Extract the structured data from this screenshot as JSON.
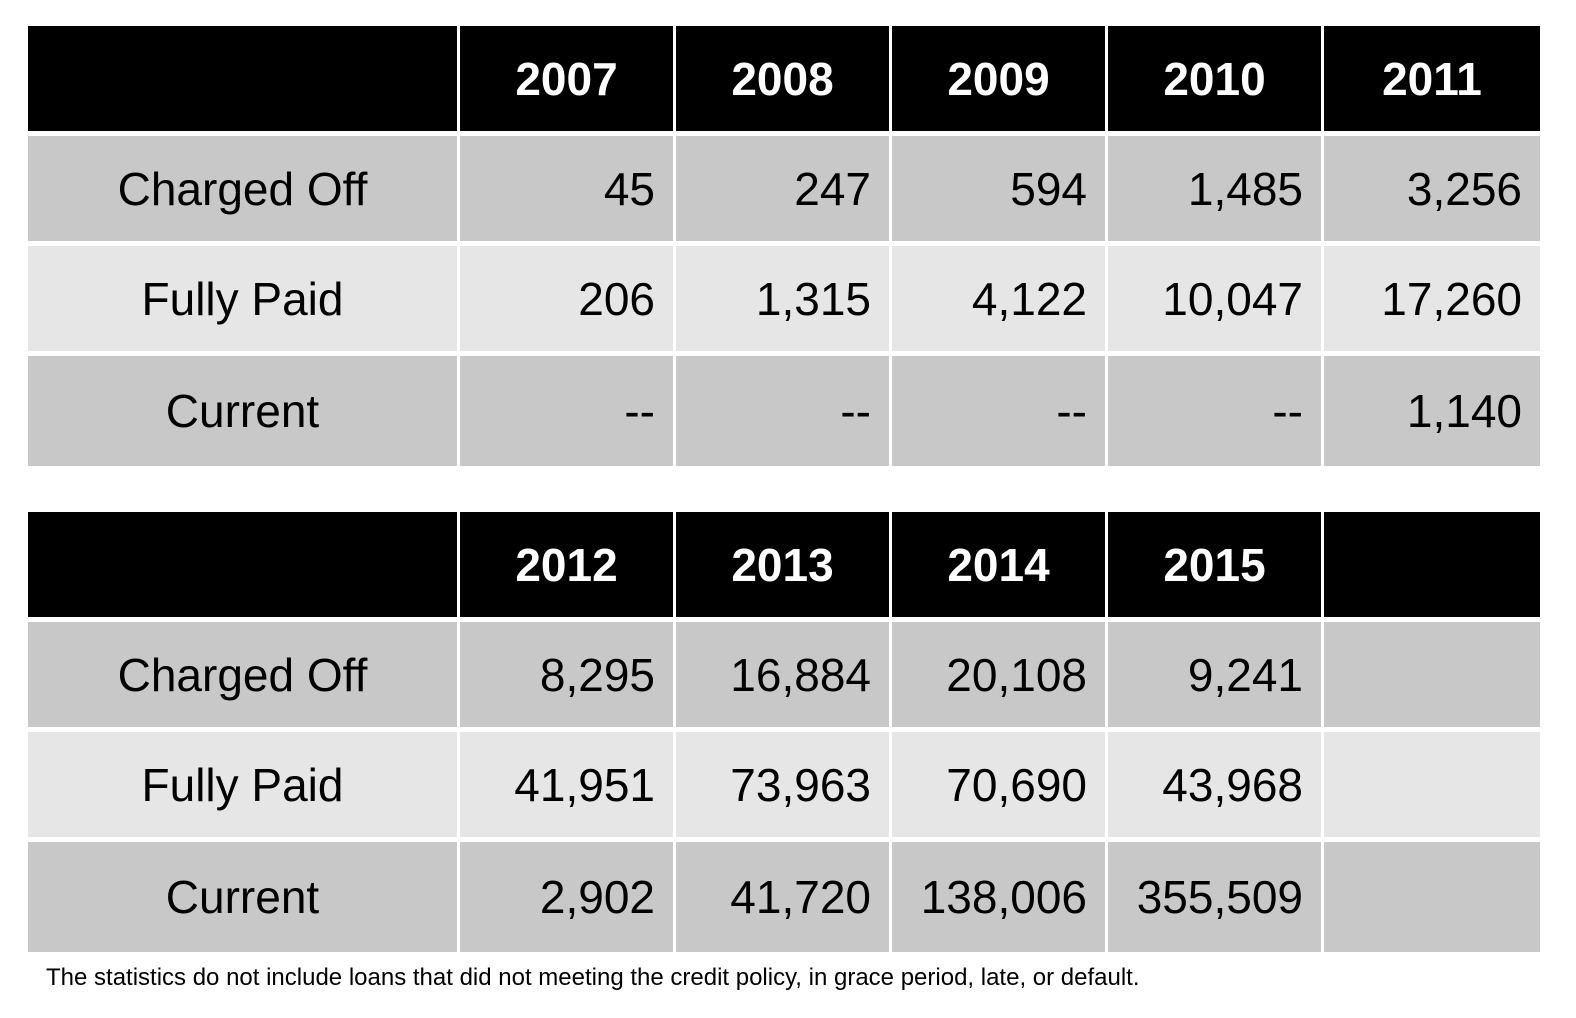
{
  "chart_data": [
    {
      "type": "table",
      "columns": [
        "",
        "2007",
        "2008",
        "2009",
        "2010",
        "2011"
      ],
      "rows": [
        [
          "Charged Off",
          "45",
          "247",
          "594",
          "1,485",
          "3,256"
        ],
        [
          "Fully Paid",
          "206",
          "1,315",
          "4,122",
          "10,047",
          "17,260"
        ],
        [
          "Current",
          "--",
          "--",
          "--",
          "--",
          "1,140"
        ]
      ]
    },
    {
      "type": "table",
      "columns": [
        "",
        "2012",
        "2013",
        "2014",
        "2015",
        ""
      ],
      "rows": [
        [
          "Charged Off",
          "8,295",
          "16,884",
          "20,108",
          "9,241",
          ""
        ],
        [
          "Fully Paid",
          "41,951",
          "73,963",
          "70,690",
          "43,968",
          ""
        ],
        [
          "Current",
          "2,902",
          "41,720",
          "138,006",
          "355,509",
          ""
        ]
      ]
    }
  ],
  "footnote": "The statistics do not include loans that did not meeting the credit policy, in grace period, late, or default.",
  "colors": {
    "header_bg": "#000000",
    "header_text": "#ffffff",
    "row_dark": "#c8c8c8",
    "row_light": "#e6e6e6"
  }
}
